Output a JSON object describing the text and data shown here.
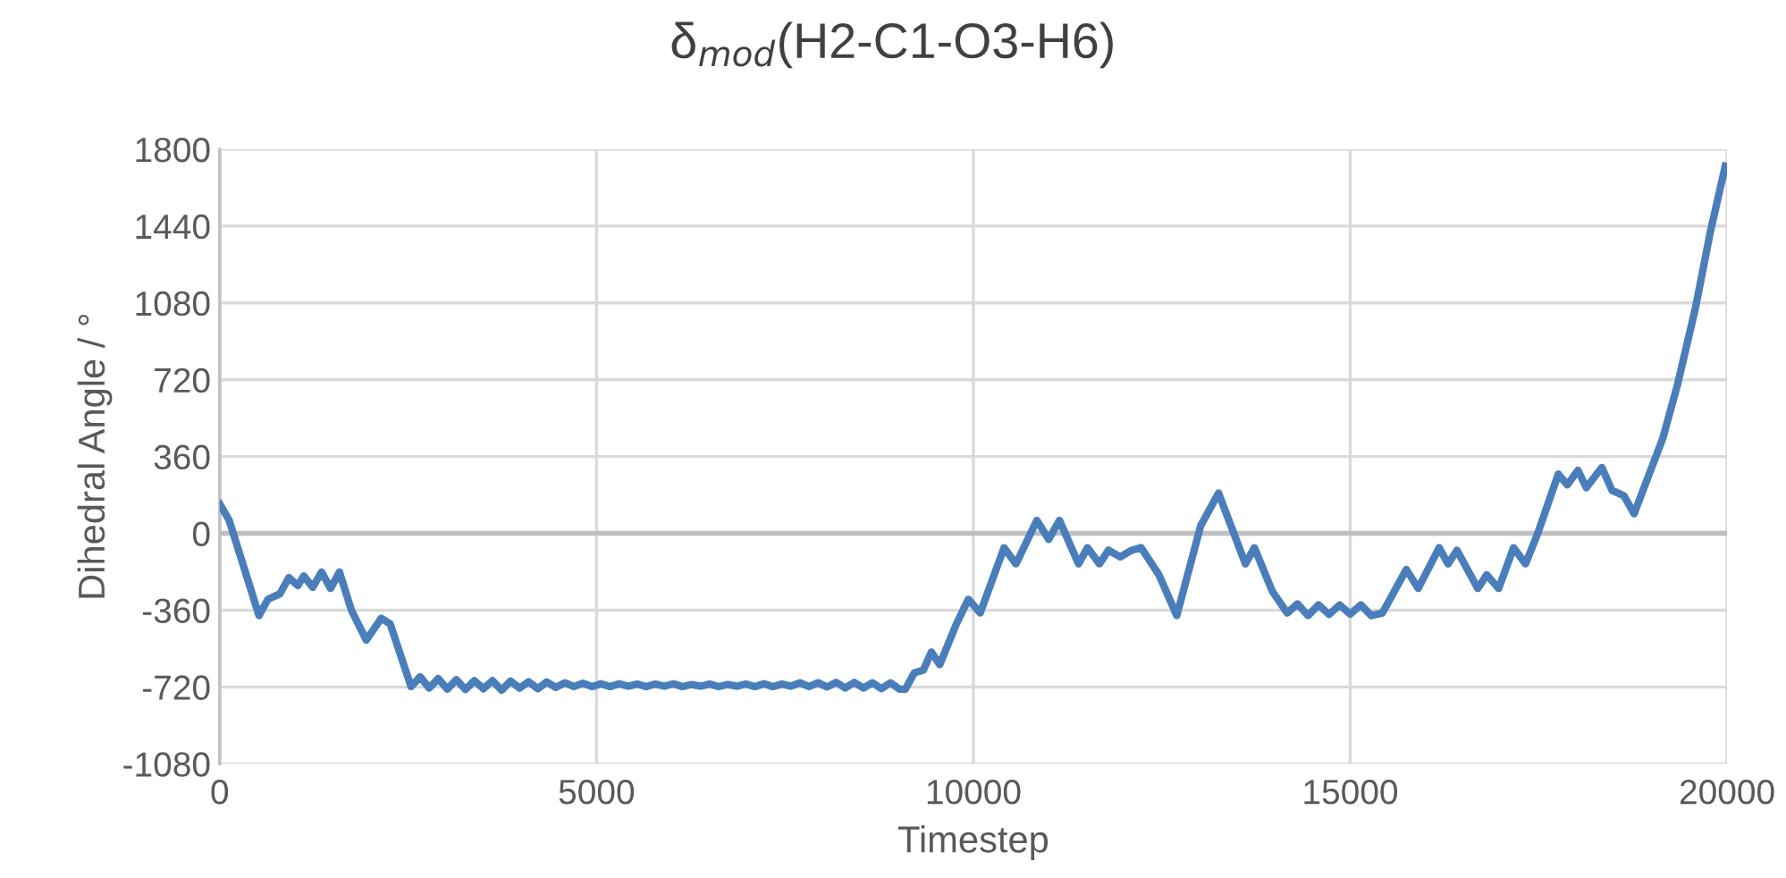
{
  "chart_data": {
    "type": "line",
    "title": "δ$_{mod}$(H2-C1-O3-H6)",
    "xlabel": "Timestep",
    "ylabel": "Dihedral Angle / °",
    "xlim": [
      0,
      20000
    ],
    "xticks": [
      0,
      5000,
      10000,
      15000,
      20000
    ],
    "ylim": [
      -1080,
      1800
    ],
    "yticks": [
      -1080,
      -720,
      -360,
      0,
      360,
      720,
      1080,
      1440,
      1800
    ],
    "grid": true,
    "legend": false,
    "marker": "none",
    "line_style": "solid",
    "series": [
      {
        "color": "#4a7ebb",
        "x": [
          0,
          126,
          522,
          641,
          800,
          918,
          1036,
          1115,
          1234,
          1352,
          1471,
          1589,
          1748,
          1945,
          2143,
          2262,
          2539,
          2660,
          2780,
          2900,
          3020,
          3140,
          3260,
          3380,
          3500,
          3620,
          3740,
          3860,
          3980,
          4100,
          4220,
          4340,
          4460,
          4580,
          4700,
          4820,
          4940,
          5060,
          5180,
          5300,
          5420,
          5540,
          5660,
          5780,
          5900,
          6020,
          6140,
          6260,
          6380,
          6500,
          6620,
          6740,
          6860,
          6980,
          7100,
          7220,
          7340,
          7460,
          7580,
          7700,
          7820,
          7940,
          8060,
          8180,
          8300,
          8420,
          8540,
          8660,
          8780,
          8900,
          9020,
          9098,
          9217,
          9336,
          9443,
          9554,
          9775,
          9933,
          10091,
          10407,
          10565,
          10842,
          11000,
          11142,
          11395,
          11514,
          11673,
          11791,
          11950,
          12100,
          12225,
          12462,
          12699,
          13016,
          13253,
          13610,
          13729,
          13966,
          14164,
          14300,
          14440,
          14580,
          14720,
          14860,
          15000,
          15140,
          15280,
          15428,
          15744,
          15902,
          16180,
          16298,
          16417,
          16693,
          16812,
          16970,
          17168,
          17326,
          17485,
          17761,
          17880,
          18022,
          18132,
          18339,
          18473,
          18632,
          18767,
          19146,
          19344,
          19581,
          19779,
          19976
        ],
        "values": [
          138,
          61,
          -385,
          -309,
          -283,
          -207,
          -245,
          -199,
          -253,
          -181,
          -258,
          -181,
          -360,
          -500,
          -398,
          -424,
          -718,
          -672,
          -725,
          -680,
          -730,
          -685,
          -732,
          -690,
          -728,
          -690,
          -735,
          -692,
          -725,
          -695,
          -728,
          -696,
          -722,
          -700,
          -718,
          -702,
          -718,
          -705,
          -718,
          -705,
          -716,
          -706,
          -718,
          -706,
          -716,
          -705,
          -718,
          -708,
          -716,
          -706,
          -718,
          -708,
          -716,
          -706,
          -718,
          -705,
          -718,
          -706,
          -716,
          -700,
          -718,
          -700,
          -720,
          -698,
          -725,
          -698,
          -725,
          -700,
          -728,
          -700,
          -730,
          -730,
          -653,
          -641,
          -556,
          -615,
          -424,
          -309,
          -373,
          -67,
          -143,
          61,
          -28,
          61,
          -143,
          -67,
          -143,
          -79,
          -110,
          -79,
          -67,
          -194,
          -385,
          36,
          189,
          -143,
          -67,
          -271,
          -373,
          -330,
          -385,
          -335,
          -380,
          -335,
          -378,
          -335,
          -385,
          -373,
          -169,
          -258,
          -67,
          -143,
          -79,
          -258,
          -194,
          -258,
          -67,
          -143,
          -3,
          278,
          227,
          296,
          214,
          309,
          202,
          176,
          92,
          444,
          699,
          1057,
          1414,
          1721
        ]
      }
    ]
  }
}
